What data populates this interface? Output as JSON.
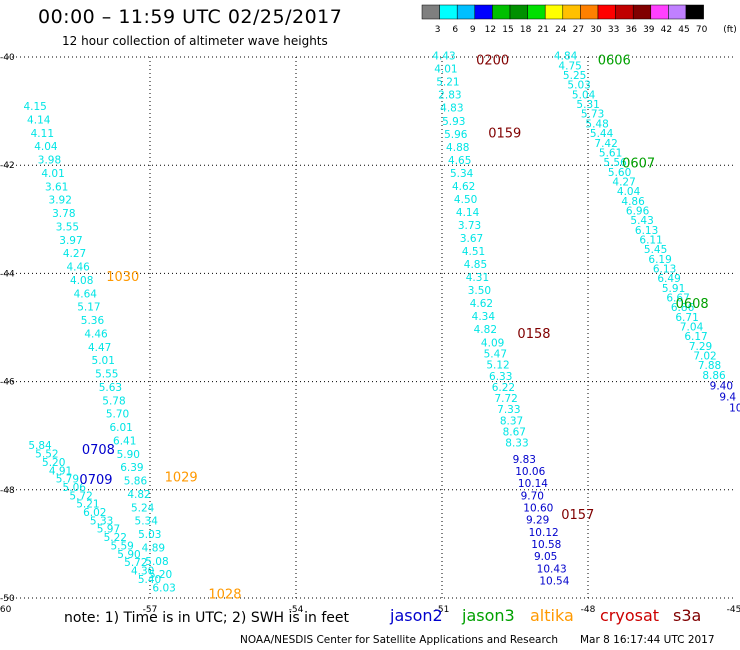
{
  "title": "00:00 – 11:59 UTC 02/25/2017",
  "subtitle": "12 hour collection of altimeter wave heights",
  "colorbar": {
    "unit_label": "(ft)",
    "ticks": [
      "3",
      "6",
      "9",
      "12",
      "15",
      "18",
      "21",
      "24",
      "27",
      "30",
      "33",
      "36",
      "39",
      "42",
      "45",
      "70"
    ],
    "colors": [
      "#7f7f7f",
      "#00ffff",
      "#00bfff",
      "#0000ff",
      "#00c000",
      "#009000",
      "#00e000",
      "#ffff00",
      "#ffc000",
      "#ff8000",
      "#ff0000",
      "#c00000",
      "#800000",
      "#ff40ff",
      "#c080ff",
      "#000000"
    ]
  },
  "note": "note: 1) Time is in UTC; 2) SWH is in feet",
  "legend": [
    {
      "name": "jason2",
      "color": "#0000cc"
    },
    {
      "name": "jason3",
      "color": "#00a000"
    },
    {
      "name": "altika",
      "color": "#ff9900"
    },
    {
      "name": "cryosat",
      "color": "#cc0000"
    },
    {
      "name": "s3a",
      "color": "#800000"
    }
  ],
  "credit": "NOAA/NESDIS Center for Satellite Applications and Research",
  "credit_time": "Mar  8 16:17:44 UTC 2017",
  "map": {
    "lon_range": [
      -60,
      -45
    ],
    "lat_range": [
      -50,
      -40
    ],
    "lon_ticks": [
      -60,
      -57,
      -54,
      -51,
      -48,
      -45
    ],
    "lat_ticks": [
      -40,
      -42,
      -44,
      -46,
      -48,
      -50
    ],
    "lon_tick_labels": [
      "-60",
      "-57",
      "-54",
      "-51",
      "-48",
      "-45"
    ],
    "lat_tick_labels": [
      "-40",
      "-42",
      "-44",
      "-46",
      "-48",
      "-50"
    ]
  },
  "tracks": [
    {
      "id": "a",
      "color": "#00e5e5",
      "time": "1030",
      "time_color": "#ff9900",
      "time_lon": -57.9,
      "time_lat": -44.05,
      "start": [
        -59.6,
        -40.98
      ],
      "end": [
        -56.95,
        -49.88
      ],
      "values": [
        "4.15",
        "4.14",
        "4.11",
        "4.04",
        "3.98",
        "4.01",
        "3.61",
        "3.92",
        "3.78",
        "3.55",
        "3.97",
        "4.27",
        "4.46",
        "4.08",
        "4.64",
        "5.17",
        "5.36",
        "4.46",
        "4.47",
        "5.01",
        "5.55",
        "5.63",
        "5.78",
        "5.70",
        "6.01",
        "6.41",
        "5.90",
        "6.39",
        "5.86",
        "4.82",
        "5.24",
        "5.34",
        "5.03",
        "4.89",
        "5.08",
        "5.20",
        "6.03"
      ]
    },
    {
      "id": "a2",
      "color": "#00e5e5",
      "time": "1029",
      "time_color": "#ff9900",
      "time_lon": -56.7,
      "time_lat": -47.75,
      "start": null,
      "end": null,
      "values": []
    },
    {
      "id": "a3",
      "color": "#00e5e5",
      "time": "1028",
      "time_color": "#ff9900",
      "time_lon": -55.8,
      "time_lat": -49.92,
      "start": null,
      "end": null,
      "values": []
    },
    {
      "id": "b",
      "color": "#00e5e5",
      "time": "0708",
      "time_color": "#0000cc",
      "time_lon": -58.4,
      "time_lat": -47.25,
      "start": [
        -59.5,
        -47.25
      ],
      "end": [
        -57.25,
        -49.72
      ],
      "values": [
        "5.84",
        "5.52",
        "5.20",
        "4.91",
        "5.79",
        "5.06",
        "5.72",
        "5.21",
        "6.02",
        "5.33",
        "5.97",
        "5.22",
        "5.59",
        "5.90",
        "5.72",
        "4.30",
        "5.40"
      ]
    },
    {
      "id": "b2",
      "color": "#00e5e5",
      "time": "0709",
      "time_color": "#0000cc",
      "time_lon": -58.45,
      "time_lat": -47.8,
      "start": null,
      "end": null,
      "values": []
    },
    {
      "id": "c",
      "color": "#00e5e5",
      "time": "0200",
      "time_color": "#800000",
      "time_lon": -50.3,
      "time_lat": -40.05,
      "start": [
        -51.2,
        -40.05
      ],
      "end": [
        -50.35,
        -45.1
      ],
      "values": [
        "4.43",
        "4.01",
        "5.21",
        "2.83",
        "4.83",
        "5.93",
        "5.96",
        "4.88",
        "4.65",
        "5.34",
        "4.62",
        "4.50",
        "4.14",
        "3.73",
        "3.67",
        "4.51",
        "4.85",
        "4.31",
        "3.50",
        "4.62",
        "4.34",
        "4.82"
      ]
    },
    {
      "id": "c2",
      "color": "#00e5e5",
      "time": "0159",
      "time_color": "#800000",
      "time_lon": -50.05,
      "time_lat": -41.4,
      "start": null,
      "end": null,
      "values": []
    },
    {
      "id": "c3",
      "color": "#00e5e5",
      "time": "0158",
      "time_color": "#800000",
      "time_lon": -49.45,
      "time_lat": -45.1,
      "start": [
        -50.2,
        -45.35
      ],
      "end": [
        -49.7,
        -47.2
      ],
      "values": [
        "4.09",
        "5.47",
        "5.12",
        "6.33",
        "6.22",
        "7.72",
        "7.33",
        "8.37",
        "8.67",
        "8.33"
      ]
    },
    {
      "id": "d",
      "color": "#0000cc",
      "time": "0157",
      "time_color": "#800000",
      "time_lon": -48.55,
      "time_lat": -48.45,
      "start": [
        -49.55,
        -47.5
      ],
      "end": [
        -49.0,
        -49.75
      ],
      "values": [
        "9.83",
        "10.06",
        "10.14",
        "9.70",
        "10.60",
        "9.29",
        "10.12",
        "10.58",
        "9.05",
        "10.43",
        "10.54"
      ]
    },
    {
      "id": "e",
      "color": "#00e5e5",
      "time": "0606",
      "time_color": "#00a000",
      "time_lon": -47.8,
      "time_lat": -40.05,
      "start": [
        -48.7,
        -40.05
      ],
      "end": [
        -45.65,
        -45.95
      ],
      "values": [
        "4.84",
        "4.75",
        "5.25",
        "5.03",
        "5.04",
        "5.31",
        "5.73",
        "5.48",
        "5.44",
        "7.42",
        "5.61",
        "5.56",
        "5.60",
        "4.27",
        "4.04",
        "4.86",
        "6.96",
        "5.43",
        "6.13",
        "6.11",
        "5.45",
        "6.19",
        "6.13",
        "6.49",
        "5.91",
        "6.67",
        "6.86",
        "6.71",
        "7.04",
        "6.17",
        "7.29",
        "7.02",
        "7.88",
        "8.86"
      ]
    },
    {
      "id": "e2",
      "color": "#00e5e5",
      "time": "0607",
      "time_color": "#00a000",
      "time_lon": -47.3,
      "time_lat": -41.95,
      "start": null,
      "end": null,
      "values": []
    },
    {
      "id": "e3",
      "color": "#00e5e5",
      "time": "0608",
      "time_color": "#00a000",
      "time_lon": -46.2,
      "time_lat": -44.55,
      "start": null,
      "end": null,
      "values": []
    },
    {
      "id": "f",
      "color": "#0000cc",
      "time": "",
      "time_color": "#0000cc",
      "time_lon": 0,
      "time_lat": 0,
      "start": [
        -45.5,
        -46.15
      ],
      "end": [
        -45.1,
        -46.55
      ],
      "values": [
        "9.40",
        "9.4",
        "10"
      ]
    }
  ]
}
